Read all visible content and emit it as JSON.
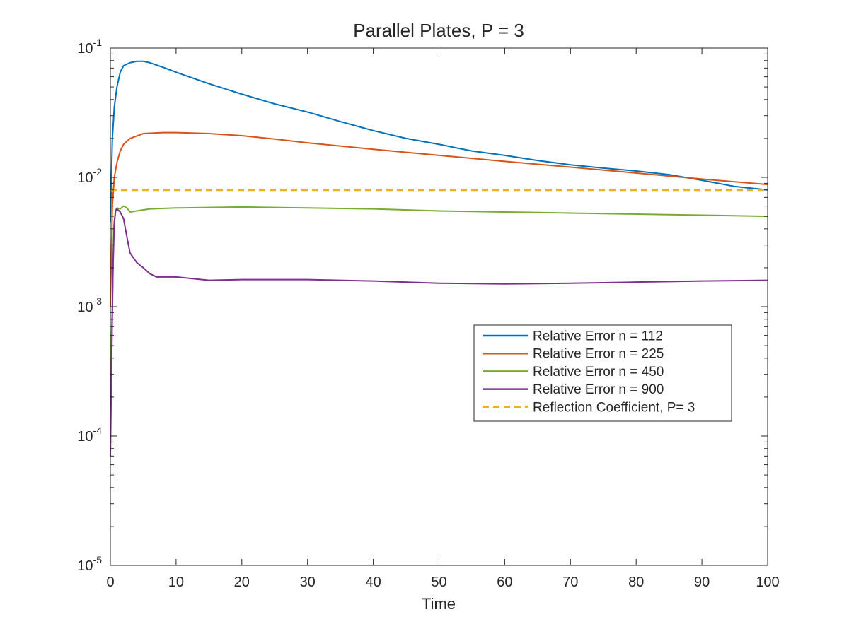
{
  "chart_data": {
    "type": "line",
    "title": "Parallel Plates, P = 3",
    "xlabel": "Time",
    "ylabel": "",
    "xlim": [
      0,
      100
    ],
    "ylim": [
      1e-05,
      0.1
    ],
    "yscale": "log",
    "grid": false,
    "legend_position": "center-right",
    "x_ticks": [
      "0",
      "10",
      "20",
      "30",
      "40",
      "50",
      "60",
      "70",
      "80",
      "90",
      "100"
    ],
    "y_ticks": [
      {
        "base": "10",
        "exp": "-5"
      },
      {
        "base": "10",
        "exp": "-4"
      },
      {
        "base": "10",
        "exp": "-3"
      },
      {
        "base": "10",
        "exp": "-2"
      },
      {
        "base": "10",
        "exp": "-1"
      }
    ],
    "series": [
      {
        "name": "Relative Error n = 112",
        "color": "#0072BD",
        "dash": "solid",
        "x": [
          0,
          0.3,
          0.6,
          1,
          1.5,
          2,
          3,
          4,
          5,
          6,
          8,
          10,
          15,
          20,
          25,
          30,
          35,
          40,
          45,
          50,
          55,
          60,
          65,
          70,
          75,
          80,
          85,
          90,
          95,
          100
        ],
        "y": [
          0.0045,
          0.02,
          0.035,
          0.05,
          0.065,
          0.073,
          0.077,
          0.079,
          0.079,
          0.077,
          0.071,
          0.065,
          0.053,
          0.044,
          0.037,
          0.032,
          0.027,
          0.023,
          0.02,
          0.018,
          0.016,
          0.0148,
          0.0135,
          0.0125,
          0.0118,
          0.0112,
          0.0105,
          0.0095,
          0.0085,
          0.008
        ]
      },
      {
        "name": "Relative Error n = 225",
        "color": "#D95319",
        "dash": "solid",
        "x": [
          0,
          0.3,
          0.6,
          1,
          1.5,
          2,
          3,
          5,
          8,
          10,
          15,
          20,
          25,
          30,
          40,
          50,
          60,
          70,
          80,
          90,
          100
        ],
        "y": [
          0.001,
          0.006,
          0.01,
          0.013,
          0.016,
          0.018,
          0.02,
          0.0218,
          0.0222,
          0.0222,
          0.0218,
          0.021,
          0.0198,
          0.0185,
          0.0165,
          0.0148,
          0.0133,
          0.012,
          0.0108,
          0.0097,
          0.0088
        ]
      },
      {
        "name": "Relative Error n = 450",
        "color": "#77AC30",
        "dash": "solid",
        "x": [
          0,
          0.3,
          0.5,
          0.8,
          1,
          1.5,
          2,
          2.5,
          3,
          4,
          6,
          10,
          20,
          30,
          40,
          50,
          60,
          70,
          80,
          90,
          100
        ],
        "y": [
          0.0003,
          0.001,
          0.004,
          0.0056,
          0.0058,
          0.0057,
          0.006,
          0.0058,
          0.0054,
          0.0055,
          0.0057,
          0.0058,
          0.0059,
          0.0058,
          0.0057,
          0.0055,
          0.0054,
          0.0053,
          0.0052,
          0.0051,
          0.005
        ]
      },
      {
        "name": "Relative Error n = 900",
        "color": "#7E2F8E",
        "dash": "solid",
        "x": [
          0,
          0.2,
          0.4,
          0.6,
          0.8,
          1,
          1.5,
          2,
          2.5,
          3,
          4,
          5,
          6,
          7,
          8,
          10,
          15,
          20,
          30,
          40,
          50,
          60,
          70,
          80,
          90,
          100
        ],
        "y": [
          7e-05,
          0.0004,
          0.002,
          0.0045,
          0.0055,
          0.0057,
          0.0054,
          0.0048,
          0.0035,
          0.0026,
          0.0022,
          0.002,
          0.0018,
          0.0017,
          0.0017,
          0.0017,
          0.0016,
          0.00162,
          0.00162,
          0.00158,
          0.00152,
          0.0015,
          0.00152,
          0.00155,
          0.00158,
          0.0016
        ]
      },
      {
        "name": "Reflection Coefficient, P= 3",
        "color": "#EDB120",
        "dash": "dashed",
        "x": [
          0,
          100
        ],
        "y": [
          0.008,
          0.008
        ]
      }
    ]
  }
}
